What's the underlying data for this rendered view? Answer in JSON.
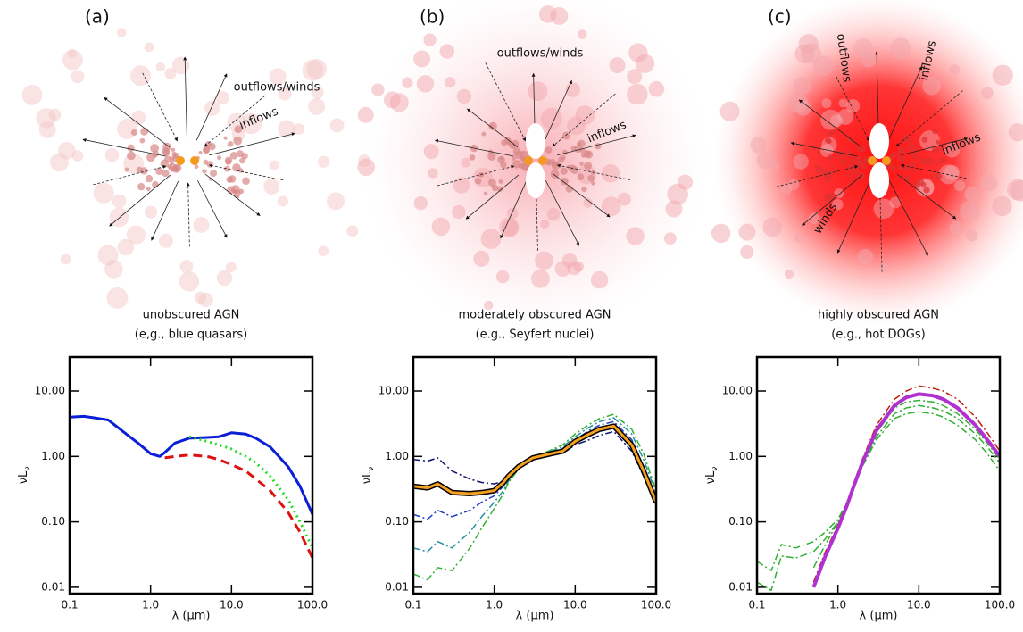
{
  "diagrams": [
    {
      "label": "(a)",
      "annotations": [
        "outflows/winds",
        "inflows"
      ]
    },
    {
      "label": "(b)",
      "annotations": [
        "outflows/winds",
        "inflows"
      ]
    },
    {
      "label": "(c)",
      "annotations": [
        "outflows",
        "inflows",
        "inflows",
        "winds"
      ]
    }
  ],
  "chart_data": [
    {
      "type": "line",
      "title": "unobscured AGN",
      "subtitle": "(e,g., blue quasars)",
      "xlabel": "λ (μm)",
      "ylabel": "νL",
      "ylabel_sub": "ν",
      "log_x": true,
      "log_y": true,
      "xlim": [
        0.1,
        100
      ],
      "ylim": [
        0.008,
        33
      ],
      "xticks": [
        0.1,
        {
          "value": 1,
          "label": "1.0"
        },
        {
          "value": 10,
          "label": "10.0"
        },
        {
          "value": 100,
          "label": "100.0"
        }
      ],
      "yticks": [
        {
          "value": 0.01,
          "label": "0.01"
        },
        {
          "value": 0.1,
          "label": "0.10"
        },
        {
          "value": 1,
          "label": "1.00"
        },
        {
          "value": 10,
          "label": "10.00"
        }
      ],
      "x": [
        0.1,
        0.15,
        0.2,
        0.3,
        0.5,
        0.7,
        1,
        1.3,
        1.5,
        2,
        3,
        5,
        7,
        10,
        15,
        20,
        30,
        50,
        70,
        100
      ],
      "series": [
        {
          "color": "#0a1fd6",
          "dash": "solid",
          "width": 3,
          "values": [
            4,
            4.1,
            3.9,
            3.6,
            2.2,
            1.6,
            1.1,
            1.0,
            1.15,
            1.6,
            1.9,
            1.95,
            2.0,
            2.3,
            2.2,
            1.9,
            1.4,
            0.7,
            0.35,
            0.13
          ]
        },
        {
          "color": "#22dd22",
          "dash": "dotted",
          "width": 3,
          "values": [
            null,
            null,
            null,
            null,
            null,
            null,
            null,
            null,
            null,
            null,
            2.0,
            1.7,
            1.5,
            1.3,
            1.0,
            0.8,
            0.5,
            0.22,
            0.1,
            0.04
          ]
        },
        {
          "color": "#e01010",
          "dash": "dashed",
          "width": 3,
          "values": [
            null,
            null,
            null,
            null,
            null,
            null,
            null,
            null,
            0.95,
            1.0,
            1.05,
            1.0,
            0.9,
            0.75,
            0.6,
            0.45,
            0.3,
            0.14,
            0.07,
            0.028
          ]
        }
      ]
    },
    {
      "type": "line",
      "title": "moderately obscured AGN",
      "subtitle": "(e.g., Seyfert nuclei)",
      "xlabel": "λ (μm)",
      "ylabel": "νL",
      "ylabel_sub": "ν",
      "log_x": true,
      "log_y": true,
      "xlim": [
        0.1,
        100
      ],
      "ylim": [
        0.008,
        33
      ],
      "xticks": [
        0.1,
        {
          "value": 1,
          "label": "1.0"
        },
        {
          "value": 10,
          "label": "10.0"
        },
        {
          "value": 100,
          "label": "100.0"
        }
      ],
      "yticks": [
        {
          "value": 0.01,
          "label": "0.01"
        },
        {
          "value": 0.1,
          "label": "0.10"
        },
        {
          "value": 1,
          "label": "1.00"
        },
        {
          "value": 10,
          "label": "10.00"
        }
      ],
      "x": [
        0.1,
        0.15,
        0.2,
        0.3,
        0.5,
        0.7,
        1,
        1.3,
        1.5,
        2,
        3,
        5,
        7,
        10,
        15,
        20,
        30,
        50,
        70,
        100
      ],
      "series": [
        {
          "color": "#101070",
          "dash": "dashdot",
          "width": 1.5,
          "values": [
            0.9,
            0.85,
            0.95,
            0.6,
            0.45,
            0.4,
            0.38,
            0.42,
            0.5,
            0.7,
            0.95,
            1.1,
            1.1,
            1.5,
            1.8,
            2.1,
            2.4,
            1.2,
            0.5,
            0.18
          ]
        },
        {
          "color": "#2040c0",
          "dash": "dashdot",
          "width": 1.5,
          "values": [
            0.13,
            0.11,
            0.15,
            0.12,
            0.15,
            0.2,
            0.25,
            0.35,
            0.45,
            0.68,
            0.95,
            1.15,
            1.3,
            1.8,
            2.5,
            3.0,
            3.4,
            1.8,
            0.7,
            0.22
          ]
        },
        {
          "color": "#2090a0",
          "dash": "dashdot",
          "width": 1.5,
          "values": [
            0.04,
            0.035,
            0.05,
            0.04,
            0.07,
            0.12,
            0.2,
            0.3,
            0.42,
            0.66,
            0.95,
            1.2,
            1.4,
            2.0,
            2.8,
            3.4,
            3.9,
            2.2,
            0.9,
            0.27
          ]
        },
        {
          "color": "#30b030",
          "dash": "dashdot",
          "width": 1.5,
          "values": [
            0.016,
            0.013,
            0.02,
            0.018,
            0.04,
            0.08,
            0.16,
            0.27,
            0.4,
            0.64,
            0.95,
            1.25,
            1.5,
            2.2,
            3.1,
            3.8,
            4.4,
            2.6,
            1.1,
            0.3
          ]
        },
        {
          "color": "#f5a020",
          "dash": "solid",
          "width": 3,
          "outline": "#000000",
          "values": [
            0.35,
            0.33,
            0.38,
            0.28,
            0.27,
            0.28,
            0.3,
            0.4,
            0.5,
            0.7,
            0.95,
            1.1,
            1.2,
            1.7,
            2.2,
            2.6,
            2.9,
            1.5,
            0.6,
            0.2
          ]
        }
      ]
    },
    {
      "type": "line",
      "title": "highly obscured AGN",
      "subtitle": "(e.g., hot DOGs)",
      "xlabel": "λ (μm)",
      "ylabel": "νL",
      "ylabel_sub": "ν",
      "log_x": true,
      "log_y": true,
      "xlim": [
        0.1,
        100
      ],
      "ylim": [
        0.008,
        33
      ],
      "xticks": [
        0.1,
        {
          "value": 1,
          "label": "1.0"
        },
        {
          "value": 10,
          "label": "10.0"
        },
        {
          "value": 100,
          "label": "100.0"
        }
      ],
      "yticks": [
        {
          "value": 0.01,
          "label": "0.01"
        },
        {
          "value": 0.1,
          "label": "0.10"
        },
        {
          "value": 1,
          "label": "1.00"
        },
        {
          "value": 10,
          "label": "10.00"
        }
      ],
      "x": [
        0.1,
        0.15,
        0.2,
        0.3,
        0.5,
        0.7,
        1,
        1.3,
        1.5,
        2,
        3,
        5,
        7,
        10,
        15,
        20,
        30,
        50,
        70,
        100
      ],
      "series": [
        {
          "color": "#30b030",
          "dash": "dashdot",
          "width": 1.5,
          "values": [
            0.025,
            0.018,
            0.045,
            0.04,
            0.05,
            0.07,
            0.11,
            0.2,
            0.3,
            0.75,
            2.0,
            4.5,
            5.5,
            6.0,
            5.5,
            5.0,
            3.8,
            2.2,
            1.4,
            0.8
          ]
        },
        {
          "color": "#30b030",
          "dash": "dashdot",
          "width": 1.5,
          "values": [
            0.012,
            0.009,
            0.03,
            0.028,
            0.035,
            0.055,
            0.1,
            0.19,
            0.29,
            0.7,
            1.8,
            3.8,
            4.5,
            4.8,
            4.5,
            4.0,
            3.0,
            1.8,
            1.1,
            0.6
          ]
        },
        {
          "color": "#30b030",
          "dash": "dashdot",
          "width": 1.5,
          "values": [
            null,
            null,
            null,
            null,
            0.02,
            0.045,
            0.1,
            0.2,
            0.3,
            0.8,
            2.3,
            5.5,
            6.8,
            7.2,
            6.8,
            6.0,
            4.5,
            2.6,
            1.6,
            0.9
          ]
        },
        {
          "color": "#c02010",
          "dash": "dashdot",
          "width": 1.5,
          "values": [
            null,
            null,
            null,
            null,
            0.012,
            0.035,
            0.09,
            0.2,
            0.33,
            0.9,
            3.0,
            7.5,
            10,
            12,
            11,
            10,
            7.5,
            4.0,
            2.3,
            1.2
          ]
        },
        {
          "color": "#b030d0",
          "dash": "solid",
          "width": 4,
          "values": [
            null,
            null,
            null,
            null,
            0.01,
            0.03,
            0.08,
            0.18,
            0.3,
            0.8,
            2.5,
            6,
            8,
            9,
            8.5,
            7.5,
            5.5,
            3.0,
            1.8,
            1.0
          ]
        }
      ]
    }
  ]
}
